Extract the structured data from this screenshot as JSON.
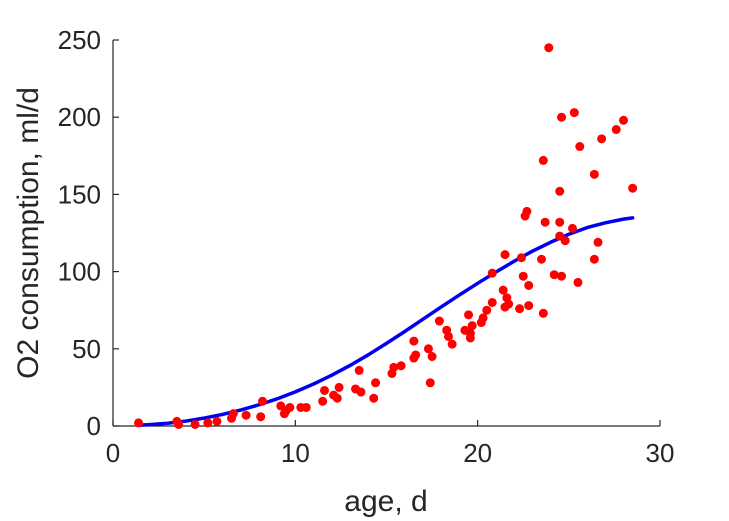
{
  "chart_data": {
    "type": "scatter",
    "xlabel": "age, d",
    "ylabel": "O2 consumption, ml/d",
    "xlim": [
      0,
      30
    ],
    "ylim": [
      0,
      250
    ],
    "xticks": [
      0,
      10,
      20,
      30
    ],
    "yticks": [
      0,
      50,
      100,
      150,
      200,
      250
    ],
    "grid": false,
    "legend": "none",
    "series": [
      {
        "kind": "scatter",
        "color": "#ff0000",
        "points": [
          [
            1.4,
            2
          ],
          [
            3.5,
            3
          ],
          [
            3.6,
            1
          ],
          [
            4.5,
            1
          ],
          [
            5.2,
            2
          ],
          [
            5.7,
            3
          ],
          [
            6.5,
            5
          ],
          [
            6.6,
            8
          ],
          [
            7.3,
            7
          ],
          [
            8.1,
            6
          ],
          [
            8.2,
            16
          ],
          [
            9.2,
            13
          ],
          [
            9.4,
            8
          ],
          [
            9.5,
            10
          ],
          [
            9.7,
            12
          ],
          [
            10.3,
            12
          ],
          [
            10.6,
            12
          ],
          [
            11.5,
            16
          ],
          [
            11.6,
            23
          ],
          [
            12.1,
            20
          ],
          [
            12.3,
            18
          ],
          [
            12.4,
            25
          ],
          [
            13.3,
            24
          ],
          [
            13.5,
            36
          ],
          [
            13.6,
            22
          ],
          [
            14.3,
            18
          ],
          [
            14.4,
            28
          ],
          [
            15.3,
            34
          ],
          [
            15.4,
            38
          ],
          [
            15.8,
            39
          ],
          [
            16.5,
            44
          ],
          [
            16.5,
            55
          ],
          [
            16.6,
            46
          ],
          [
            17.3,
            50
          ],
          [
            17.4,
            28
          ],
          [
            17.5,
            45
          ],
          [
            17.9,
            68
          ],
          [
            18.3,
            62
          ],
          [
            18.4,
            58
          ],
          [
            18.6,
            53
          ],
          [
            19.3,
            62
          ],
          [
            19.5,
            72
          ],
          [
            19.6,
            60
          ],
          [
            19.6,
            57
          ],
          [
            19.7,
            65
          ],
          [
            20.2,
            67
          ],
          [
            20.3,
            70
          ],
          [
            20.5,
            75
          ],
          [
            20.8,
            99
          ],
          [
            20.8,
            80
          ],
          [
            21.4,
            88
          ],
          [
            21.5,
            77
          ],
          [
            21.5,
            111
          ],
          [
            21.6,
            83
          ],
          [
            21.7,
            79
          ],
          [
            22.3,
            76
          ],
          [
            22.4,
            109
          ],
          [
            22.5,
            97
          ],
          [
            22.6,
            136
          ],
          [
            22.7,
            139
          ],
          [
            22.8,
            91
          ],
          [
            22.8,
            78
          ],
          [
            23.5,
            108
          ],
          [
            23.6,
            73
          ],
          [
            23.6,
            172
          ],
          [
            23.7,
            132
          ],
          [
            23.9,
            245
          ],
          [
            24.2,
            98
          ],
          [
            24.5,
            123
          ],
          [
            24.5,
            152
          ],
          [
            24.5,
            132
          ],
          [
            24.6,
            200
          ],
          [
            24.6,
            97
          ],
          [
            24.8,
            120
          ],
          [
            25.2,
            128
          ],
          [
            25.3,
            203
          ],
          [
            25.5,
            93
          ],
          [
            25.6,
            181
          ],
          [
            26.4,
            163
          ],
          [
            26.4,
            108
          ],
          [
            26.6,
            119
          ],
          [
            26.8,
            186
          ],
          [
            27.6,
            192
          ],
          [
            28.0,
            198
          ],
          [
            28.5,
            154
          ]
        ]
      },
      {
        "kind": "line",
        "color": "#0000ee",
        "points": [
          [
            1.4,
            0.5
          ],
          [
            2,
            0.9
          ],
          [
            3,
            1.8
          ],
          [
            4,
            3.2
          ],
          [
            5,
            5.1
          ],
          [
            6,
            7.5
          ],
          [
            7,
            10.3
          ],
          [
            8,
            13.7
          ],
          [
            9,
            17.6
          ],
          [
            10,
            22.1
          ],
          [
            11,
            27.2
          ],
          [
            12,
            32.9
          ],
          [
            13,
            39.2
          ],
          [
            14,
            46.1
          ],
          [
            15,
            53.5
          ],
          [
            16,
            61.2
          ],
          [
            17,
            69.2
          ],
          [
            18,
            77.1
          ],
          [
            19,
            84.9
          ],
          [
            20,
            92.4
          ],
          [
            21,
            99.7
          ],
          [
            22,
            106.7
          ],
          [
            23,
            113.2
          ],
          [
            24,
            119.0
          ],
          [
            25,
            124.2
          ],
          [
            26,
            128.5
          ],
          [
            27,
            131.6
          ],
          [
            28,
            134.0
          ],
          [
            28.5,
            134.8
          ]
        ]
      }
    ]
  }
}
